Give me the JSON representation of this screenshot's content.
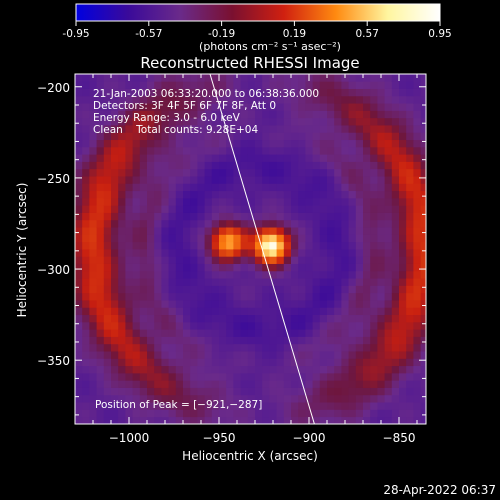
{
  "colorbar": {
    "ticks": [
      "-0.95",
      "-0.57",
      "-0.19",
      "0.19",
      "0.57",
      "0.95"
    ],
    "tick_values": [
      -0.95,
      -0.57,
      -0.19,
      0.19,
      0.57,
      0.95
    ],
    "range": [
      -0.95,
      0.95
    ],
    "units": "(photons cm⁻² s⁻¹ asec⁻²)",
    "colors": [
      "#0000e0",
      "#3a0a9a",
      "#6a2a8a",
      "#7a1030",
      "#d02010",
      "#ff8a10",
      "#fff6a0",
      "#ffffff"
    ]
  },
  "chart_data": {
    "type": "heatmap",
    "title": "Reconstructed RHESSI Image",
    "xlabel": "Heliocentric X (arcsec)",
    "ylabel": "Heliocentric Y (arcsec)",
    "xlim": [
      -1030,
      -835
    ],
    "ylim": [
      -385,
      -193
    ],
    "x_ticks": [
      -1000,
      -950,
      -900,
      -850
    ],
    "x_tick_labels": [
      "−1000",
      "−950",
      "−900",
      "−850"
    ],
    "y_ticks": [
      -200,
      -250,
      -300,
      -350
    ],
    "y_tick_labels": [
      "−200",
      "−250",
      "−300",
      "−350"
    ],
    "annotations": [
      "21-Jan-2003 06:33:20.000 to 06:38:36.000",
      "Detectors: 3F 4F 5F 6F 7F 8F, Att 0",
      "Energy Range: 3.0 - 6.0 keV",
      "Clean    Total counts: 9.28E+04"
    ],
    "peak_label": "Position of Peak = [−921,−287]",
    "peak": [
      -921,
      -287
    ],
    "sources": [
      {
        "x": -921,
        "y": -287,
        "value": 0.95
      },
      {
        "x": -945,
        "y": -285,
        "value": 0.65
      }
    ],
    "limb_line": [
      [
        -955,
        -193
      ],
      [
        -897,
        -385
      ]
    ]
  },
  "footer": {
    "date": "28-Apr-2022 06:37"
  }
}
